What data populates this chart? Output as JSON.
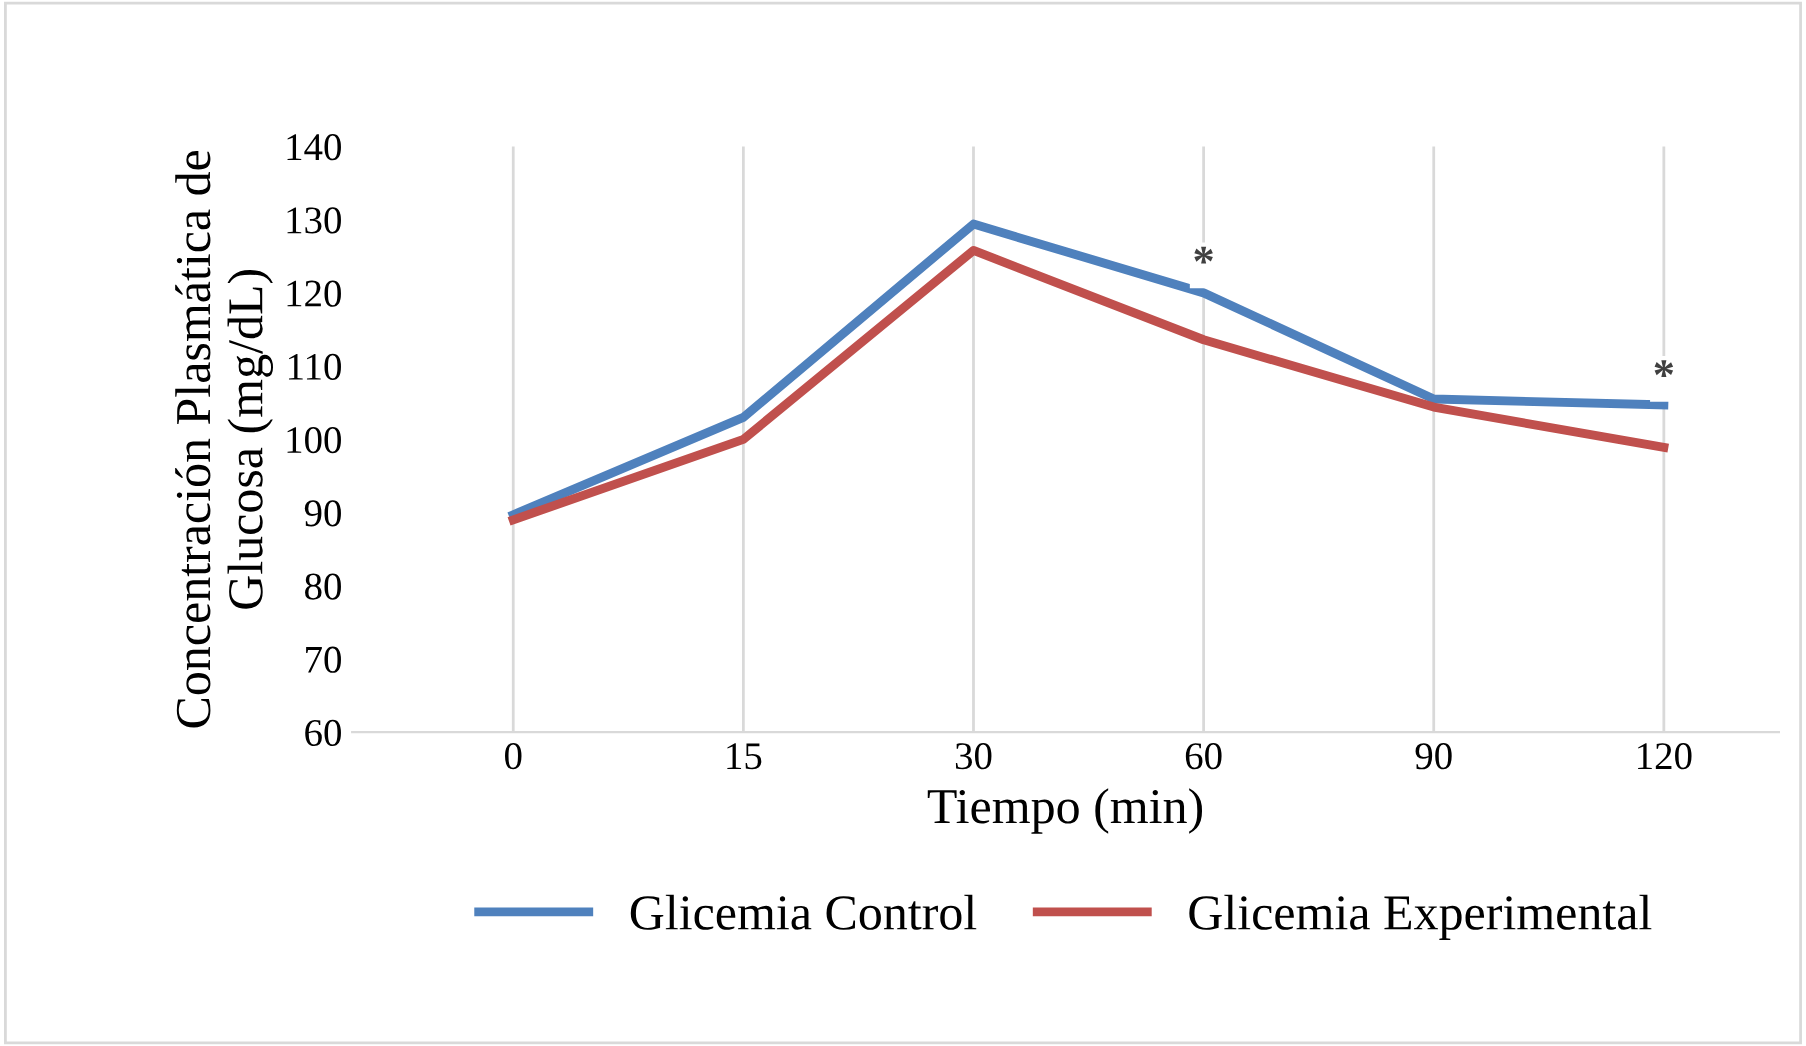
{
  "chart_data": {
    "type": "line",
    "xlabel": "Tiempo (min)",
    "ylabel": "Concentración Plasmática de\nGlucosa (mg/dL)",
    "categories": [
      "0",
      "15",
      "30",
      "60",
      "90",
      "120"
    ],
    "series": [
      {
        "name": "Glicemia Control",
        "color": "#4f81bd",
        "values": [
          89.7,
          103,
          129.4,
          120,
          105.5,
          104.7
        ]
      },
      {
        "name": "Glicemia Experimental",
        "color": "#c0504d",
        "values": [
          89,
          100,
          125.8,
          113.6,
          104.4,
          98.9
        ]
      }
    ],
    "annotations": [
      {
        "text": "*",
        "x": "60",
        "y": 121
      },
      {
        "text": "*",
        "x": "120",
        "y": 105.5
      }
    ],
    "ylim": [
      60,
      140
    ],
    "yticks": [
      60,
      70,
      80,
      90,
      100,
      110,
      120,
      130,
      140
    ],
    "grid": "x",
    "legend": "bottom",
    "marker": "none",
    "line_style": "solid"
  }
}
